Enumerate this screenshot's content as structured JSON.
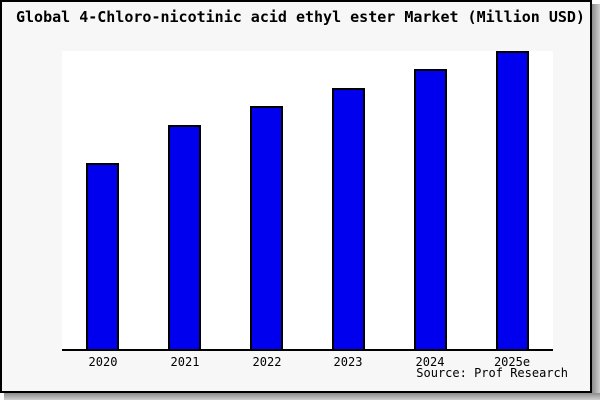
{
  "chart_data": {
    "type": "bar",
    "title": "Global 4-Chloro-nicotinic acid ethyl ester Market (Million USD)",
    "categories": [
      "2020",
      "2021",
      "2022",
      "2023",
      "2024",
      "2025e"
    ],
    "values": [
      62.4,
      75.1,
      81.5,
      87.5,
      93.8,
      100
    ],
    "value_scale": "relative height, tallest bar = 100 (no y-axis tick labels shown in chart)",
    "xlabel": "",
    "ylabel": "",
    "ylim": [
      0,
      100
    ],
    "grid": false,
    "legend": null
  },
  "source_note": "Source: Prof Research",
  "colors": {
    "bar_fill": "#0000EE",
    "bar_border": "#000000",
    "figure_bg": "#f7f7f7",
    "plot_bg": "#ffffff",
    "axis_line": "#000000",
    "frame_border": "#000000",
    "shadow": "#8c8c8c",
    "text": "#000000"
  }
}
